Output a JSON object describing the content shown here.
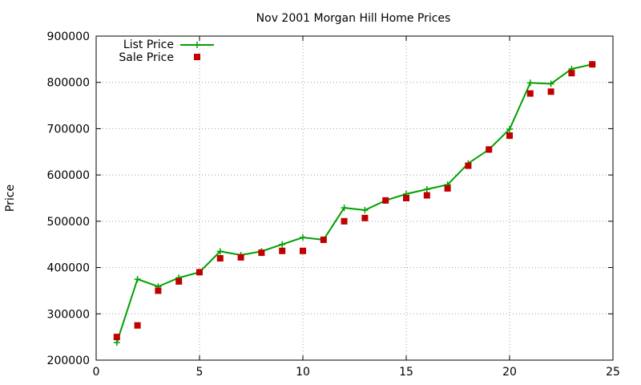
{
  "chart_data": {
    "type": "line",
    "title": "Nov 2001 Morgan Hill Home Prices",
    "xlabel": "",
    "ylabel": "Price",
    "xlim": [
      0,
      25
    ],
    "ylim": [
      200000,
      900000
    ],
    "xticks": [
      0,
      5,
      10,
      15,
      20,
      25
    ],
    "yticks": [
      200000,
      300000,
      400000,
      500000,
      600000,
      700000,
      800000,
      900000
    ],
    "grid": true,
    "legend_position": "top-left",
    "series": [
      {
        "name": "List Price",
        "style": "linespoints",
        "marker": "plus",
        "color": "#00a000",
        "x": [
          1,
          2,
          3,
          4,
          5,
          6,
          7,
          8,
          9,
          10,
          11,
          12,
          13,
          14,
          15,
          16,
          17,
          18,
          19,
          20,
          21,
          22,
          23,
          24
        ],
        "y": [
          238000,
          375000,
          359000,
          378000,
          390000,
          435000,
          427000,
          435000,
          450000,
          465000,
          460000,
          529000,
          524000,
          545000,
          559000,
          569000,
          579000,
          625000,
          655000,
          699000,
          799000,
          797000,
          829000,
          839000
        ]
      },
      {
        "name": "Sale Price",
        "style": "points",
        "marker": "square",
        "color": "#c00000",
        "x": [
          1,
          2,
          3,
          4,
          5,
          6,
          7,
          8,
          9,
          10,
          11,
          12,
          13,
          14,
          15,
          16,
          17,
          18,
          19,
          20,
          21,
          22,
          23,
          24
        ],
        "y": [
          250000,
          275000,
          350000,
          370000,
          390000,
          420000,
          422000,
          432000,
          436000,
          436000,
          460000,
          500000,
          507000,
          545000,
          550000,
          556000,
          571000,
          620000,
          655000,
          685000,
          776000,
          780000,
          820000,
          839000
        ]
      }
    ]
  }
}
